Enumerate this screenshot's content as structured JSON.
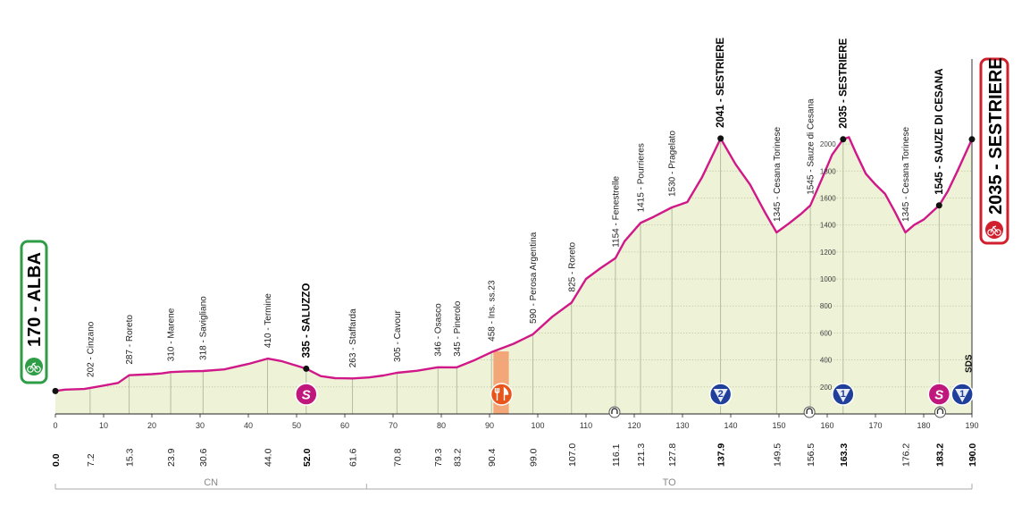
{
  "chart_data": {
    "type": "area",
    "xlim": [
      0,
      190
    ],
    "ylim": [
      0,
      2100
    ],
    "x_ticks": [
      0,
      10,
      20,
      30,
      40,
      50,
      60,
      70,
      80,
      90,
      100,
      110,
      120,
      130,
      140,
      150,
      160,
      170,
      180,
      190
    ],
    "y_ticks": [
      200,
      400,
      600,
      800,
      1000,
      1200,
      1400,
      1600,
      1800,
      2000
    ],
    "start": {
      "label": "170 - ALBA",
      "km": 0.0,
      "alt": 170
    },
    "finish": {
      "label": "2035 - SESTRIERE",
      "km": 190.0,
      "alt": 2035
    },
    "profile": [
      [
        0,
        170
      ],
      [
        2,
        180
      ],
      [
        6,
        185
      ],
      [
        10,
        210
      ],
      [
        13,
        230
      ],
      [
        15.3,
        287
      ],
      [
        20,
        295
      ],
      [
        22,
        300
      ],
      [
        23.9,
        310
      ],
      [
        27,
        315
      ],
      [
        30.6,
        318
      ],
      [
        35,
        330
      ],
      [
        40,
        370
      ],
      [
        44,
        410
      ],
      [
        47,
        390
      ],
      [
        52,
        335
      ],
      [
        55,
        280
      ],
      [
        58,
        265
      ],
      [
        61.6,
        263
      ],
      [
        65,
        270
      ],
      [
        68,
        285
      ],
      [
        70.8,
        305
      ],
      [
        75,
        320
      ],
      [
        79.3,
        346
      ],
      [
        83.2,
        345
      ],
      [
        87,
        400
      ],
      [
        90.4,
        458
      ],
      [
        95,
        520
      ],
      [
        99,
        590
      ],
      [
        103,
        720
      ],
      [
        107,
        825
      ],
      [
        110,
        1000
      ],
      [
        113,
        1080
      ],
      [
        116.1,
        1154
      ],
      [
        118,
        1280
      ],
      [
        121.3,
        1415
      ],
      [
        124,
        1460
      ],
      [
        127.8,
        1530
      ],
      [
        131,
        1570
      ],
      [
        134,
        1750
      ],
      [
        137.9,
        2041
      ],
      [
        141,
        1850
      ],
      [
        144,
        1700
      ],
      [
        147,
        1500
      ],
      [
        149.5,
        1345
      ],
      [
        152,
        1410
      ],
      [
        154.5,
        1480
      ],
      [
        156.5,
        1545
      ],
      [
        159,
        1750
      ],
      [
        161,
        1920
      ],
      [
        163.3,
        2035
      ],
      [
        164.5,
        2050
      ],
      [
        166,
        1930
      ],
      [
        168,
        1780
      ],
      [
        170,
        1700
      ],
      [
        172,
        1630
      ],
      [
        174,
        1500
      ],
      [
        176.2,
        1345
      ],
      [
        178,
        1400
      ],
      [
        180,
        1440
      ],
      [
        183.2,
        1545
      ],
      [
        185,
        1650
      ],
      [
        187,
        1800
      ],
      [
        190,
        2035
      ]
    ],
    "km_labels": [
      {
        "km": 0.0,
        "label": "0.0",
        "bold": true
      },
      {
        "km": 7.2,
        "label": "7.2",
        "bold": false
      },
      {
        "km": 15.3,
        "label": "15.3",
        "bold": false
      },
      {
        "km": 23.9,
        "label": "23.9",
        "bold": false
      },
      {
        "km": 30.6,
        "label": "30.6",
        "bold": false
      },
      {
        "km": 44.0,
        "label": "44.0",
        "bold": false
      },
      {
        "km": 52.0,
        "label": "52.0",
        "bold": true
      },
      {
        "km": 61.6,
        "label": "61.6",
        "bold": false
      },
      {
        "km": 70.8,
        "label": "70.8",
        "bold": false
      },
      {
        "km": 79.3,
        "label": "79.3",
        "bold": false
      },
      {
        "km": 83.2,
        "label": "83.2",
        "bold": false
      },
      {
        "km": 90.4,
        "label": "90.4",
        "bold": false
      },
      {
        "km": 99.0,
        "label": "99.0",
        "bold": false
      },
      {
        "km": 107.0,
        "label": "107.0",
        "bold": false
      },
      {
        "km": 116.1,
        "label": "116.1",
        "bold": false
      },
      {
        "km": 121.3,
        "label": "121.3",
        "bold": false
      },
      {
        "km": 127.8,
        "label": "127.8",
        "bold": false
      },
      {
        "km": 137.9,
        "label": "137.9",
        "bold": true
      },
      {
        "km": 149.5,
        "label": "149.5",
        "bold": false
      },
      {
        "km": 156.5,
        "label": "156.5",
        "bold": false
      },
      {
        "km": 163.3,
        "label": "163.3",
        "bold": true
      },
      {
        "km": 176.2,
        "label": "176.2",
        "bold": false
      },
      {
        "km": 183.2,
        "label": "183.2",
        "bold": true
      },
      {
        "km": 190.0,
        "label": "190.0",
        "bold": true
      }
    ],
    "waypoints": [
      {
        "km": 7.2,
        "alt": 202,
        "label": "202 - Cinzano",
        "bold": false
      },
      {
        "km": 15.3,
        "alt": 287,
        "label": "287 - Roreto",
        "bold": false
      },
      {
        "km": 23.9,
        "alt": 310,
        "label": "310 - Marene",
        "bold": false
      },
      {
        "km": 30.6,
        "alt": 318,
        "label": "318 - Savigliano",
        "bold": false
      },
      {
        "km": 44.0,
        "alt": 410,
        "label": "410 - Termine",
        "bold": false
      },
      {
        "km": 52.0,
        "alt": 335,
        "label": "335 - SALUZZO",
        "bold": true
      },
      {
        "km": 61.6,
        "alt": 263,
        "label": "263 - Staffarda",
        "bold": false
      },
      {
        "km": 70.8,
        "alt": 305,
        "label": "305 - Cavour",
        "bold": false
      },
      {
        "km": 79.3,
        "alt": 346,
        "label": "346 - Osasco",
        "bold": false
      },
      {
        "km": 83.2,
        "alt": 345,
        "label": "345 - Pinerolo",
        "bold": false
      },
      {
        "km": 90.4,
        "alt": 458,
        "label": "458 - Ins. ss.23",
        "bold": false
      },
      {
        "km": 99.0,
        "alt": 590,
        "label": "590 - Perosa Argentina",
        "bold": false
      },
      {
        "km": 107.0,
        "alt": 825,
        "label": "825 - Roreto",
        "bold": false
      },
      {
        "km": 116.1,
        "alt": 1154,
        "label": "1154 - Fenestrelle",
        "bold": false
      },
      {
        "km": 121.3,
        "alt": 1415,
        "label": "1415 - Pourrieres",
        "bold": false
      },
      {
        "km": 127.8,
        "alt": 1530,
        "label": "1530 - Pragelato",
        "bold": false
      },
      {
        "km": 137.9,
        "alt": 2041,
        "label": "2041 - SESTRIERE",
        "bold": true
      },
      {
        "km": 149.5,
        "alt": 1345,
        "label": "1345 - Cesana Torinese",
        "bold": false
      },
      {
        "km": 156.5,
        "alt": 1545,
        "label": "1545 - Sauze di Cesana",
        "bold": false
      },
      {
        "km": 163.3,
        "alt": 2035,
        "label": "2035 - SESTRIERE",
        "bold": true
      },
      {
        "km": 176.2,
        "alt": 1345,
        "label": "1345 - Cesana Torinese",
        "bold": false
      },
      {
        "km": 183.2,
        "alt": 1545,
        "label": "1545 - SAUZE DI CESANA",
        "bold": true
      }
    ],
    "markers": [
      {
        "km": 52.0,
        "type": "sprint",
        "text": "S",
        "color": "#c0177d"
      },
      {
        "km": 92.5,
        "type": "feed",
        "text": "🍴",
        "color": "#e8541a"
      },
      {
        "km": 137.9,
        "type": "kom",
        "text": "2",
        "color": "#1f3f9a"
      },
      {
        "km": 163.3,
        "type": "kom",
        "text": "1",
        "color": "#1f3f9a"
      },
      {
        "km": 183.2,
        "type": "sprint",
        "text": "S",
        "color": "#c0177d"
      },
      {
        "km": 188.0,
        "type": "kom",
        "text": "1",
        "color": "#1f3f9a"
      }
    ],
    "tunnels": [
      116.1,
      156.5,
      183.6
    ],
    "feed_zone": [
      90.8,
      94.0
    ],
    "sds": {
      "km": 189.2,
      "text": "SDS"
    },
    "provinces": [
      {
        "name": "CN",
        "from": 0,
        "to": 64.5
      },
      {
        "name": "TO",
        "from": 64.5,
        "to": 190
      }
    ],
    "colors": {
      "profile_line": "#d01888",
      "fill": "#eef3d8",
      "start_border": "#2f9d46",
      "finish_border": "#d11f2d",
      "sprint": "#c0177d",
      "kom": "#1f3f9a",
      "feed": "#e8541a",
      "feed_zone": "#f3a779"
    }
  }
}
